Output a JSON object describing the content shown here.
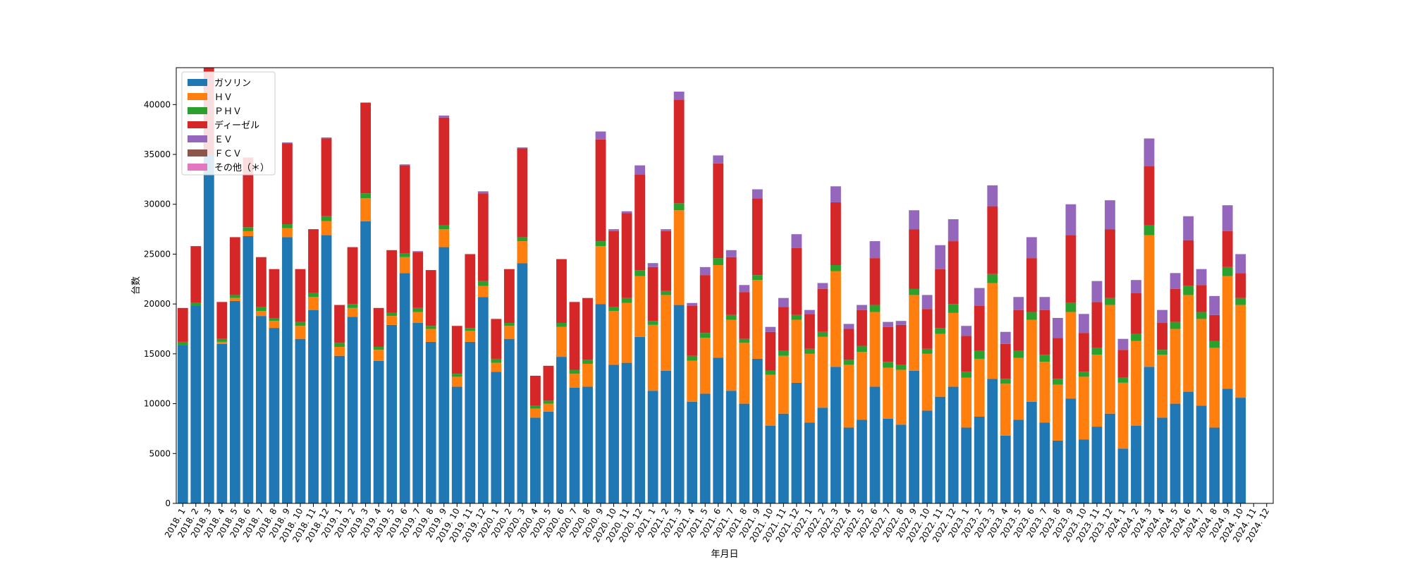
{
  "chart_data": {
    "type": "bar",
    "stacked": true,
    "title": "",
    "xlabel": "年月日",
    "ylabel": "台数",
    "ylim": [
      0,
      43700
    ],
    "yticks": [
      0,
      5000,
      10000,
      15000,
      20000,
      25000,
      30000,
      35000,
      40000
    ],
    "legend_position": "upper-left",
    "categories": [
      "2018. 1",
      "2018. 2",
      "2018. 3",
      "2018. 4",
      "2018. 5",
      "2018. 6",
      "2018. 7",
      "2018. 8",
      "2018. 9",
      "2018. 10",
      "2018. 11",
      "2018. 12",
      "2019. 1",
      "2019. 2",
      "2019. 3",
      "2019. 4",
      "2019. 5",
      "2019. 6",
      "2019. 7",
      "2019. 8",
      "2019. 9",
      "2019. 10",
      "2019. 11",
      "2019. 12",
      "2020. 1",
      "2020. 2",
      "2020. 3",
      "2020. 4",
      "2020. 5",
      "2020. 6",
      "2020. 7",
      "2020. 8",
      "2020. 9",
      "2020. 10",
      "2020. 11",
      "2020. 12",
      "2021. 1",
      "2021. 2",
      "2021. 3",
      "2021. 4",
      "2021. 5",
      "2021. 6",
      "2021. 7",
      "2021. 8",
      "2021. 9",
      "2021. 10",
      "2021. 11",
      "2021. 12",
      "2022. 1",
      "2022. 2",
      "2022. 3",
      "2022. 4",
      "2022. 5",
      "2022. 6",
      "2022. 7",
      "2022. 8",
      "2022. 9",
      "2022. 10",
      "2022. 11",
      "2022. 12",
      "2023. 1",
      "2023. 2",
      "2023. 3",
      "2023. 4",
      "2023. 5",
      "2023. 6",
      "2023. 7",
      "2023. 8",
      "2023. 9",
      "2023. 10",
      "2023. 11",
      "2023. 12",
      "2024. 1",
      "2024. 2",
      "2024. 3",
      "2024. 4",
      "2024. 5",
      "2024. 6",
      "2024. 7",
      "2024. 8",
      "2024. 9",
      "2024. 10",
      "2024. 11",
      "2024. 12"
    ],
    "series": [
      {
        "name": "ガソリン",
        "color": "#1f77b4",
        "values": [
          15900,
          19800,
          35000,
          16000,
          20300,
          26800,
          18800,
          17600,
          26700,
          16500,
          19400,
          26900,
          14800,
          18700,
          28300,
          14300,
          17900,
          23100,
          18100,
          16200,
          25700,
          11700,
          16200,
          20700,
          13200,
          16500,
          24100,
          8600,
          9200,
          14700,
          11600,
          11700,
          20000,
          13900,
          14100,
          16700,
          11300,
          13300,
          19900,
          10200,
          11000,
          14600,
          11300,
          10000,
          14500,
          7800,
          9000,
          12100,
          8100,
          9600,
          13700,
          7600,
          8400,
          11700,
          8500,
          7900,
          13300,
          9300,
          10700,
          11700,
          7600,
          8700,
          12500,
          6800,
          8400,
          10200,
          8100,
          6300,
          10500,
          6400,
          7700,
          9000,
          5500,
          7800,
          13700,
          8600,
          10000,
          11200,
          9800,
          7600,
          11500,
          10600,
          0,
          0
        ]
      },
      {
        "name": "ＨＶ",
        "color": "#ff7f0e",
        "values": [
          0,
          0,
          0,
          200,
          300,
          500,
          500,
          700,
          900,
          1300,
          1300,
          1400,
          900,
          900,
          2300,
          1100,
          900,
          1600,
          1100,
          1300,
          1800,
          1000,
          1100,
          1100,
          900,
          1300,
          2200,
          900,
          800,
          3000,
          1400,
          2300,
          5800,
          5400,
          6000,
          6100,
          6600,
          7600,
          9500,
          4100,
          5600,
          9300,
          7100,
          6100,
          7900,
          5100,
          5800,
          6300,
          6900,
          7100,
          9600,
          6300,
          6800,
          7500,
          5100,
          5500,
          7600,
          5700,
          6300,
          7400,
          5000,
          5800,
          9600,
          5200,
          6200,
          8200,
          6100,
          5600,
          8700,
          6300,
          7200,
          10900,
          6600,
          8500,
          13200,
          6300,
          7500,
          9700,
          8700,
          8000,
          11300,
          9300,
          0,
          0
        ]
      },
      {
        "name": "ＰＨＶ",
        "color": "#2ca02c",
        "values": [
          300,
          300,
          0,
          300,
          300,
          400,
          400,
          300,
          400,
          400,
          400,
          500,
          400,
          400,
          500,
          300,
          300,
          400,
          400,
          300,
          400,
          300,
          300,
          500,
          400,
          300,
          400,
          300,
          300,
          400,
          400,
          400,
          500,
          400,
          500,
          600,
          400,
          400,
          700,
          500,
          500,
          700,
          500,
          400,
          500,
          400,
          500,
          500,
          500,
          500,
          600,
          500,
          600,
          700,
          600,
          500,
          600,
          500,
          600,
          900,
          600,
          800,
          900,
          500,
          700,
          800,
          700,
          600,
          900,
          500,
          700,
          700,
          500,
          700,
          1000,
          500,
          700,
          900,
          700,
          700,
          900,
          700,
          0,
          0
        ]
      },
      {
        "name": "ディーゼル",
        "color": "#d62728",
        "values": [
          3400,
          5700,
          9000,
          3700,
          5800,
          7000,
          5000,
          4900,
          8100,
          5300,
          6400,
          7800,
          3800,
          5700,
          9100,
          3900,
          6300,
          8800,
          5600,
          5600,
          10800,
          4800,
          7400,
          8800,
          4000,
          5400,
          8900,
          3000,
          3500,
          6400,
          6800,
          6200,
          10200,
          7600,
          8500,
          9600,
          5400,
          6000,
          10400,
          5000,
          5800,
          9500,
          5800,
          4700,
          7700,
          3900,
          4400,
          6700,
          3500,
          4300,
          6300,
          3100,
          3600,
          4700,
          3500,
          4000,
          6000,
          4000,
          5900,
          6300,
          3600,
          4500,
          6800,
          3500,
          4100,
          5400,
          4500,
          4100,
          6800,
          3900,
          4600,
          6900,
          2800,
          4100,
          5900,
          2700,
          3300,
          4600,
          2700,
          2600,
          3600,
          2500,
          0,
          0
        ]
      },
      {
        "name": "ＥＶ",
        "color": "#9467bd",
        "values": [
          0,
          0,
          0,
          0,
          0,
          0,
          0,
          0,
          100,
          0,
          0,
          100,
          0,
          0,
          0,
          0,
          0,
          100,
          100,
          0,
          200,
          0,
          0,
          200,
          0,
          0,
          100,
          0,
          0,
          0,
          0,
          0,
          800,
          200,
          200,
          900,
          400,
          200,
          800,
          300,
          800,
          800,
          700,
          700,
          900,
          500,
          900,
          1400,
          400,
          600,
          1600,
          500,
          500,
          1700,
          500,
          400,
          1900,
          1400,
          2400,
          2200,
          1000,
          1800,
          2100,
          1200,
          1300,
          2100,
          1300,
          2000,
          3100,
          1900,
          2100,
          2900,
          1100,
          1300,
          2800,
          1300,
          1600,
          2400,
          1600,
          1900,
          2600,
          1900,
          0,
          0
        ]
      },
      {
        "name": "ＦＣＶ",
        "color": "#8c564b",
        "values": [
          0,
          0,
          0,
          0,
          0,
          0,
          0,
          0,
          0,
          0,
          0,
          0,
          0,
          0,
          0,
          0,
          0,
          0,
          0,
          0,
          0,
          0,
          0,
          0,
          0,
          0,
          0,
          0,
          0,
          0,
          0,
          0,
          0,
          0,
          0,
          0,
          0,
          0,
          0,
          0,
          0,
          0,
          0,
          0,
          0,
          0,
          0,
          0,
          0,
          0,
          0,
          0,
          0,
          0,
          0,
          0,
          0,
          0,
          0,
          0,
          0,
          0,
          0,
          0,
          0,
          0,
          0,
          0,
          0,
          0,
          0,
          0,
          0,
          0,
          0,
          0,
          0,
          0,
          0,
          0,
          0,
          0,
          0,
          0
        ]
      },
      {
        "name": "その他（＊）",
        "color": "#e377c2",
        "values": [
          0,
          0,
          0,
          0,
          0,
          0,
          0,
          0,
          0,
          0,
          0,
          0,
          0,
          0,
          0,
          0,
          0,
          0,
          0,
          0,
          0,
          0,
          0,
          0,
          0,
          0,
          0,
          0,
          0,
          0,
          0,
          0,
          0,
          0,
          0,
          0,
          0,
          0,
          0,
          0,
          0,
          0,
          0,
          0,
          0,
          0,
          0,
          0,
          0,
          0,
          0,
          0,
          0,
          0,
          0,
          0,
          0,
          0,
          0,
          0,
          0,
          0,
          0,
          0,
          0,
          0,
          0,
          0,
          0,
          0,
          0,
          0,
          0,
          0,
          0,
          0,
          0,
          0,
          0,
          0,
          0,
          0,
          0,
          0
        ]
      }
    ]
  }
}
